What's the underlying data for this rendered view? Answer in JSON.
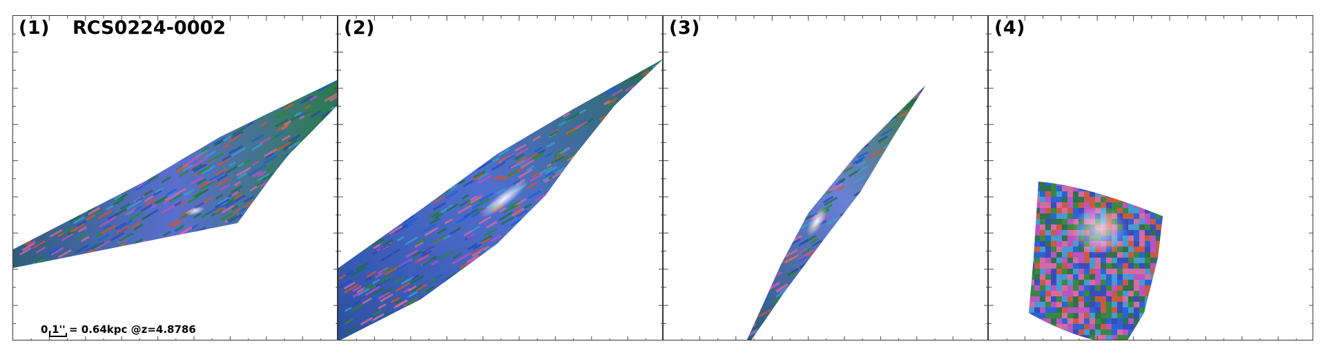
{
  "panels": [
    {
      "label": "(1)",
      "title": "RCS0224-0002",
      "scale_text": "0.1'' = 0.64kpc @z=4.8786"
    },
    {
      "label": "(2)"
    },
    {
      "label": "(3)"
    },
    {
      "label": "(4)"
    }
  ],
  "colors": {
    "frame": "#333333",
    "tex": [
      "#1a5fd6",
      "#2a8a2a",
      "#d2552b",
      "#c04fc0",
      "#2b44b8",
      "#1e6e3a",
      "#e06a9a",
      "#3aa0d0"
    ]
  }
}
